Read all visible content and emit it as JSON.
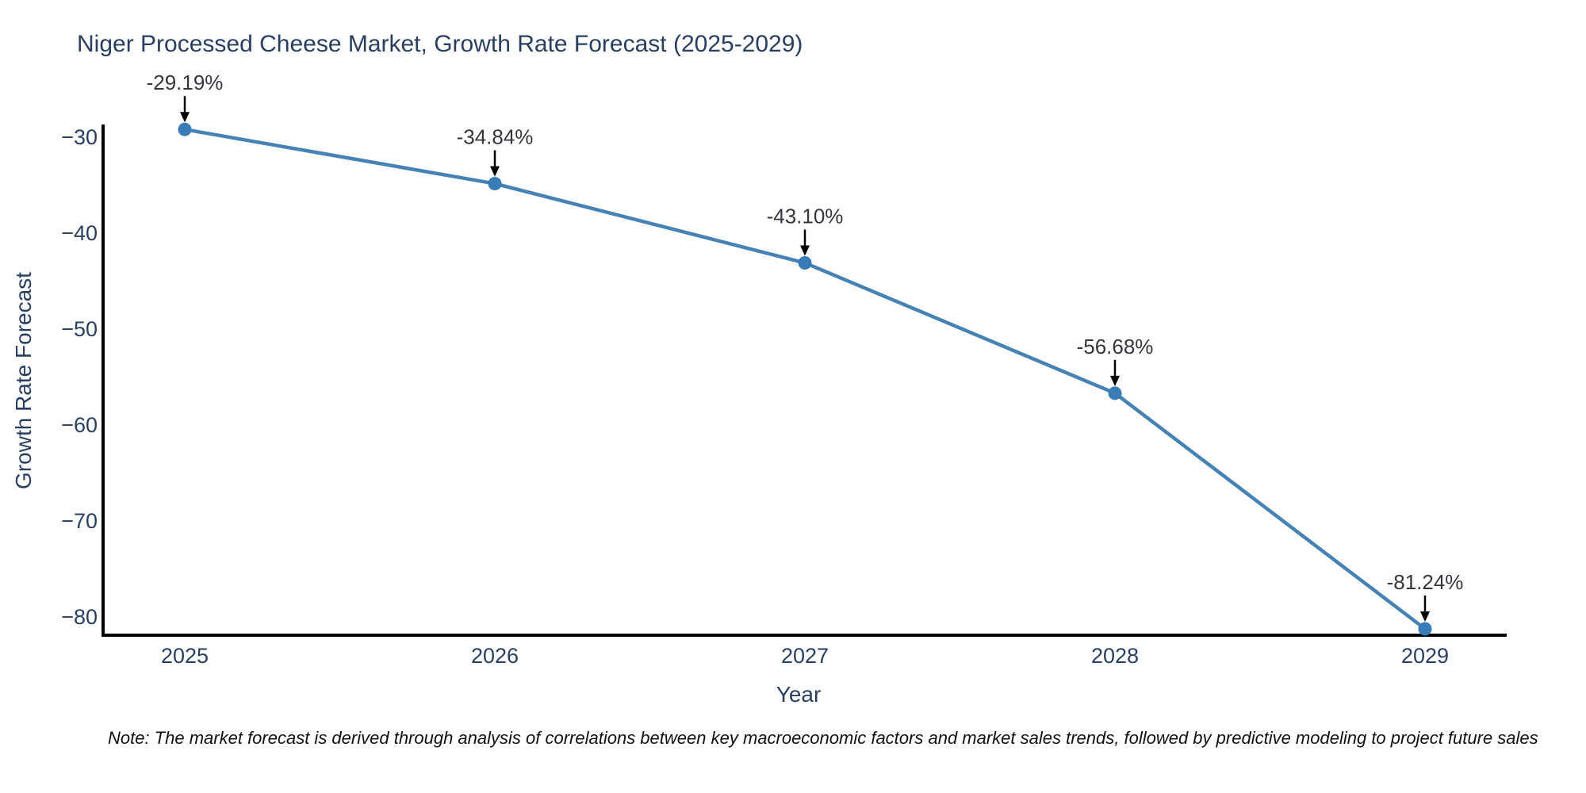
{
  "chart_data": {
    "type": "line",
    "title": "Niger Processed Cheese Market, Growth Rate Forecast (2025-2029)",
    "xlabel": "Year",
    "ylabel": "Growth Rate Forecast",
    "x": [
      2025,
      2026,
      2027,
      2028,
      2029
    ],
    "values": [
      -29.19,
      -34.84,
      -43.1,
      -56.68,
      -81.24
    ],
    "point_labels": [
      "-29.19%",
      "-34.84%",
      "-43.10%",
      "-56.68%",
      "-81.24%"
    ],
    "xtick_labels": [
      "2025",
      "2026",
      "2027",
      "2028",
      "2029"
    ],
    "yticks": [
      -30,
      -40,
      -50,
      -60,
      -70,
      -80
    ],
    "ytick_labels": [
      "−30",
      "−40",
      "−50",
      "−60",
      "−70",
      "−80"
    ],
    "ylim": [
      -82.0,
      -28.7
    ],
    "grid": false,
    "legend": "none",
    "line_color": "#4682b4",
    "marker_color": "#3a7cb5",
    "note": "Note: The market forecast is derived through analysis of correlations between key macroeconomic factors and market sales trends, followed by predictive modeling to project future sales"
  },
  "colors": {
    "title_text": "#2a3f5f",
    "tick_text": "#2a3f5f",
    "axis_label_text": "#2a3f5f",
    "annotation_text": "#33373d",
    "axis_line": "#000000",
    "arrow": "#000000",
    "note_text": "#111111",
    "background": "#ffffff"
  }
}
